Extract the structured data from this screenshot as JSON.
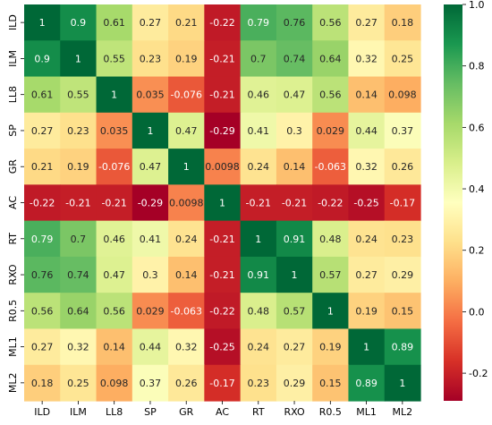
{
  "chart_data": {
    "type": "heatmap",
    "title": "",
    "xlabel": "",
    "ylabel": "",
    "variables": [
      "ILD",
      "ILM",
      "LL8",
      "SP",
      "GR",
      "AC",
      "RT",
      "RXO",
      "R0.5",
      "ML1",
      "ML2"
    ],
    "value_labels": [
      [
        "1",
        "0.9",
        "0.61",
        "0.27",
        "0.21",
        "-0.22",
        "0.79",
        "0.76",
        "0.56",
        "0.27",
        "0.18"
      ],
      [
        "0.9",
        "1",
        "0.55",
        "0.23",
        "0.19",
        "-0.21",
        "0.7",
        "0.74",
        "0.64",
        "0.32",
        "0.25"
      ],
      [
        "0.61",
        "0.55",
        "1",
        "0.035",
        "-0.076",
        "-0.21",
        "0.46",
        "0.47",
        "0.56",
        "0.14",
        "0.098"
      ],
      [
        "0.27",
        "0.23",
        "0.035",
        "1",
        "0.47",
        "-0.29",
        "0.41",
        "0.3",
        "0.029",
        "0.44",
        "0.37"
      ],
      [
        "0.21",
        "0.19",
        "-0.076",
        "0.47",
        "1",
        "0.0098",
        "0.24",
        "0.14",
        "-0.063",
        "0.32",
        "0.26"
      ],
      [
        "-0.22",
        "-0.21",
        "-0.21",
        "-0.29",
        "0.0098",
        "1",
        "-0.21",
        "-0.21",
        "-0.22",
        "-0.25",
        "-0.17"
      ],
      [
        "0.79",
        "0.7",
        "0.46",
        "0.41",
        "0.24",
        "-0.21",
        "1",
        "0.91",
        "0.48",
        "0.24",
        "0.23"
      ],
      [
        "0.76",
        "0.74",
        "0.47",
        "0.3",
        "0.14",
        "-0.21",
        "0.91",
        "1",
        "0.57",
        "0.27",
        "0.29"
      ],
      [
        "0.56",
        "0.64",
        "0.56",
        "0.029",
        "-0.063",
        "-0.22",
        "0.48",
        "0.57",
        "1",
        "0.19",
        "0.15"
      ],
      [
        "0.27",
        "0.32",
        "0.14",
        "0.44",
        "0.32",
        "-0.25",
        "0.24",
        "0.27",
        "0.19",
        "1",
        "0.89"
      ],
      [
        "0.18",
        "0.25",
        "0.098",
        "0.37",
        "0.26",
        "-0.17",
        "0.23",
        "0.29",
        "0.15",
        "0.89",
        "1"
      ]
    ],
    "colorbar": {
      "min": -0.29,
      "max": 1.0,
      "ticks": [
        "1.0",
        "0.8",
        "0.6",
        "0.4",
        "0.2",
        "0.0",
        "-0.2"
      ],
      "colormap": "RdYlGn"
    },
    "grid": false,
    "legend": "colorbar-right"
  }
}
